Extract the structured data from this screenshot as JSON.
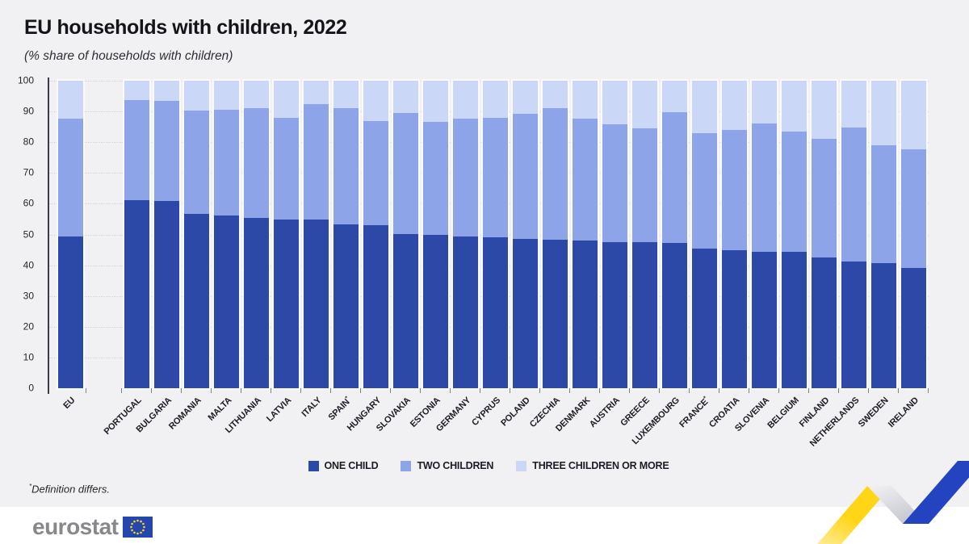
{
  "header": {
    "title": "EU households with children, 2022",
    "subtitle": "(%  share of households with children)"
  },
  "chart_data": {
    "type": "bar",
    "stacked": true,
    "title": "EU households with children, 2022",
    "subtitle": "(% share of households with children)",
    "unit": "%",
    "ylim": [
      0,
      100
    ],
    "yticks": [
      0,
      10,
      20,
      30,
      40,
      50,
      60,
      70,
      80,
      90,
      100
    ],
    "grid": "horizontal-dotted",
    "legend_position": "bottom",
    "categories": [
      "EU",
      "PORTUGAL",
      "BULGARIA",
      "ROMANIA",
      "MALTA",
      "LITHUANIA",
      "LATVIA",
      "ITALY",
      "SPAIN*",
      "HUNGARY",
      "SLOVAKIA",
      "ESTONIA",
      "GERMANY",
      "CYPRUS",
      "POLAND",
      "CZECHIA",
      "DENMARK",
      "AUSTRIA",
      "GREECE",
      "LUXEMBOURG",
      "FRANCE*",
      "CROATIA",
      "SLOVENIA",
      "BELGIUM",
      "FINLAND",
      "NETHERLANDS",
      "SWEDEN",
      "IRELAND"
    ],
    "series": [
      {
        "name": "ONE CHILD",
        "color": "#2c49a7",
        "values": [
          49.4,
          61.2,
          61.0,
          56.7,
          56.2,
          55.4,
          54.9,
          54.8,
          53.4,
          52.9,
          50.1,
          49.9,
          49.4,
          49.1,
          48.6,
          48.4,
          48.0,
          47.6,
          47.4,
          47.3,
          45.4,
          44.9,
          44.4,
          44.4,
          42.4,
          41.2,
          40.6,
          39.1
        ]
      },
      {
        "name": "TWO CHILDREN",
        "color": "#8ea4e9",
        "values": [
          38.3,
          32.5,
          32.4,
          33.6,
          34.3,
          35.8,
          33.1,
          37.5,
          37.6,
          34.1,
          39.4,
          36.8,
          38.4,
          38.9,
          40.6,
          42.8,
          39.7,
          38.3,
          37.0,
          42.5,
          37.6,
          39.0,
          41.8,
          39.1,
          38.6,
          43.6,
          38.4,
          38.7
        ]
      },
      {
        "name": "THREE CHILDREN OR MORE",
        "color": "#cbd7f6",
        "values": [
          12.3,
          6.3,
          6.6,
          9.7,
          9.5,
          8.8,
          12.0,
          7.7,
          9.0,
          13.0,
          10.5,
          13.3,
          12.2,
          12.0,
          10.8,
          8.8,
          12.3,
          14.1,
          15.6,
          10.2,
          17.0,
          16.1,
          13.8,
          16.5,
          19.0,
          15.2,
          21.0,
          22.2
        ]
      }
    ]
  },
  "footnote": {
    "marker": "*",
    "text": "Definition differs."
  },
  "branding": {
    "logo_text": "eurostat",
    "flag_blue": "#2446ad",
    "star_yellow": "#ffd617",
    "ribbon_yellow": "#ffd617",
    "ribbon_blue": "#2443c0"
  }
}
